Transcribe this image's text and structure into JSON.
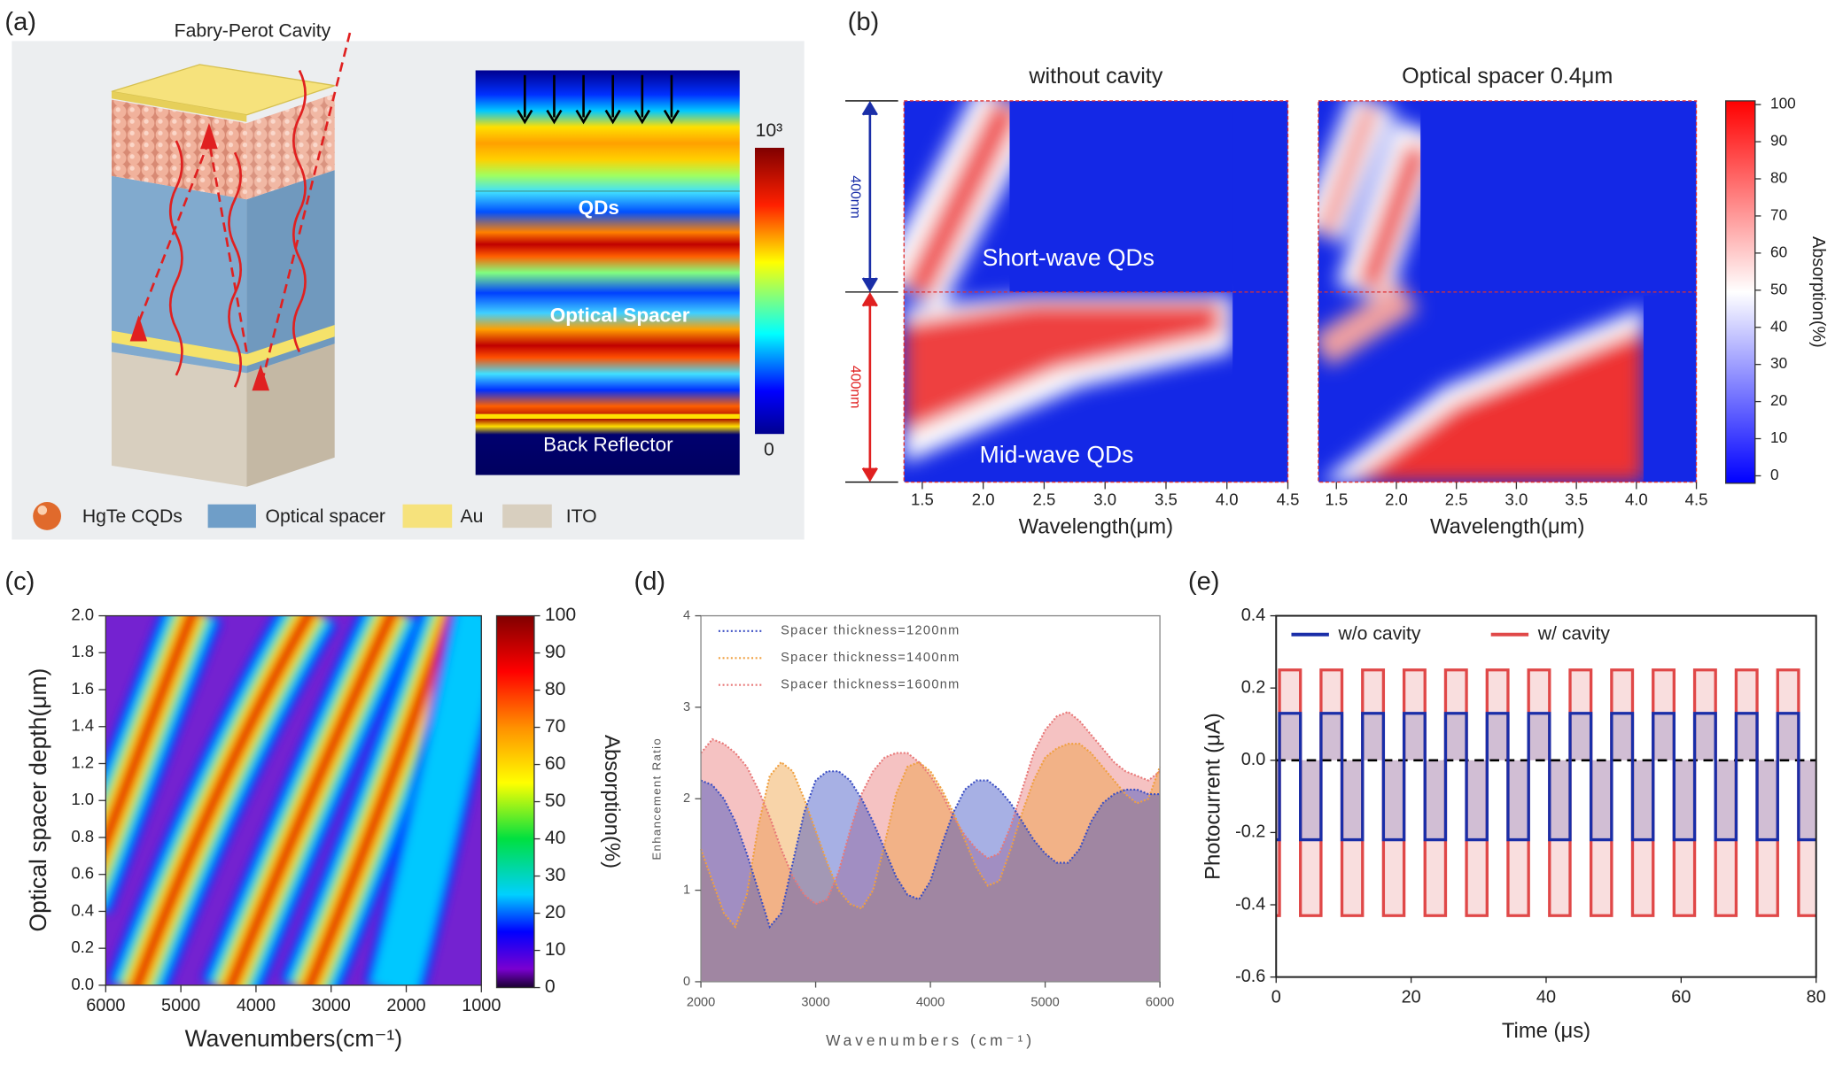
{
  "panel_labels": [
    "(a)",
    "(b)",
    "(c)",
    "(d)",
    "(e)"
  ],
  "diagram": {
    "title": "Fabry-Perot Cavity",
    "field_labels": [
      "QDs",
      "Optical Spacer",
      "Back Reflector"
    ],
    "colorbar_labels": [
      "10³",
      "0"
    ],
    "legend": [
      "HgTe CQDs",
      "Optical spacer",
      "Au",
      "ITO"
    ]
  },
  "chart_data": [
    {
      "type": "heatmap",
      "panels": [
        {
          "title": "without cavity"
        },
        {
          "title": "Optical spacer 0.4μm"
        }
      ],
      "region_labels": [
        "Short-wave QDs",
        "Mid-wave QDs"
      ],
      "thickness_labels": [
        "400nm",
        "400nm"
      ],
      "xlabel": "Wavelength(μm)",
      "xlim": [
        1.35,
        4.5
      ],
      "xticks": [
        1.5,
        {
          "value": 2,
          "label": "2.0"
        },
        2.5,
        {
          "value": 3,
          "label": "3.0"
        },
        3.5,
        {
          "value": 4,
          "label": "4.0"
        },
        4.5
      ],
      "colorbar": {
        "label": "Absorption(%)",
        "lim": [
          -2,
          101
        ],
        "ticks": [
          0,
          10,
          20,
          30,
          40,
          50,
          60,
          70,
          80,
          90,
          100
        ]
      }
    },
    {
      "type": "heatmap",
      "xlabel": "Wavenumbers(cm⁻¹)",
      "ylabel": "Optical spacer depth(μm)",
      "xlim": [
        6000,
        1000
      ],
      "xticks": [
        6000,
        5000,
        4000,
        3000,
        2000,
        1000
      ],
      "ylim": [
        0,
        2
      ],
      "yticks": [
        {
          "value": 0,
          "label": "0.0"
        },
        0.2,
        0.4,
        0.6,
        0.8,
        {
          "value": 1,
          "label": "1.0"
        },
        1.2,
        1.4,
        1.6,
        1.8,
        {
          "value": 2,
          "label": "2.0"
        }
      ],
      "colorbar": {
        "label": "Absorption(%)",
        "lim": [
          0,
          100
        ],
        "ticks": [
          0,
          10,
          20,
          30,
          40,
          50,
          60,
          70,
          80,
          90,
          100
        ]
      }
    },
    {
      "type": "line",
      "xlabel": "Wavenumbers (cm⁻¹)",
      "ylabel": "Enhancement Ratio",
      "xlim": [
        2000,
        6000
      ],
      "xticks": [
        2000,
        3000,
        4000,
        5000,
        6000
      ],
      "ylim": [
        0,
        4
      ],
      "yticks": [
        0,
        1,
        2,
        3,
        4
      ],
      "x": [
        2000,
        2100,
        2200,
        2300,
        2400,
        2500,
        2600,
        2700,
        2800,
        2900,
        3000,
        3100,
        3200,
        3300,
        3400,
        3500,
        3600,
        3700,
        3800,
        3900,
        4000,
        4100,
        4200,
        4300,
        4400,
        4500,
        4600,
        4700,
        4800,
        4900,
        5000,
        5100,
        5200,
        5300,
        5400,
        5500,
        5600,
        5700,
        5800,
        5900,
        6000
      ],
      "series": [
        {
          "name": "Spacer thickness=1200nm",
          "color": "#3b4fc4",
          "values": [
            2.2,
            2.15,
            2.0,
            1.75,
            1.4,
            1.0,
            0.6,
            0.75,
            1.3,
            1.85,
            2.2,
            2.3,
            2.3,
            2.2,
            2.0,
            1.75,
            1.45,
            1.15,
            0.95,
            0.9,
            1.1,
            1.5,
            1.85,
            2.1,
            2.2,
            2.2,
            2.1,
            1.95,
            1.75,
            1.55,
            1.4,
            1.3,
            1.3,
            1.45,
            1.75,
            1.95,
            2.05,
            2.1,
            2.1,
            2.05,
            2.05
          ]
        },
        {
          "name": "Spacer thickness=1400nm",
          "color": "#f0a040",
          "values": [
            1.45,
            1.1,
            0.75,
            0.6,
            0.95,
            1.7,
            2.25,
            2.4,
            2.3,
            2.0,
            1.65,
            1.3,
            1.0,
            0.85,
            0.8,
            1.0,
            1.5,
            2.05,
            2.35,
            2.4,
            2.3,
            2.1,
            1.85,
            1.55,
            1.25,
            1.05,
            1.1,
            1.45,
            1.85,
            2.2,
            2.45,
            2.55,
            2.6,
            2.6,
            2.5,
            2.35,
            2.2,
            2.05,
            1.95,
            2.0,
            2.35
          ]
        },
        {
          "name": "Spacer thickness=1600nm",
          "color": "#e87878",
          "values": [
            2.5,
            2.65,
            2.6,
            2.5,
            2.35,
            2.1,
            1.8,
            1.45,
            1.15,
            0.95,
            0.85,
            0.9,
            1.2,
            1.65,
            2.05,
            2.3,
            2.45,
            2.5,
            2.5,
            2.4,
            2.25,
            2.05,
            1.8,
            1.6,
            1.45,
            1.35,
            1.4,
            1.7,
            2.1,
            2.5,
            2.75,
            2.9,
            2.95,
            2.85,
            2.7,
            2.55,
            2.4,
            2.3,
            2.25,
            2.2,
            2.3
          ]
        }
      ]
    },
    {
      "type": "line",
      "xlabel": "Time (μs)",
      "ylabel": "Photocurrent (μA)",
      "xlim": [
        0,
        80
      ],
      "xticks": [
        0,
        20,
        40,
        60,
        80
      ],
      "ylim": [
        -0.6,
        0.4
      ],
      "yticks": [
        -0.6,
        -0.4,
        -0.2,
        {
          "value": 0,
          "label": "0.0"
        },
        0.2,
        0.4
      ],
      "x": [
        0,
        0.5,
        0.5,
        3.6,
        3.6,
        6.65,
        6.65,
        9.75,
        9.75,
        12.8,
        12.8,
        15.9,
        15.9,
        18.95,
        18.95,
        22.05,
        22.05,
        25.1,
        25.1,
        28.2,
        28.2,
        31.25,
        31.25,
        34.35,
        34.35,
        37.4,
        37.4,
        40.5,
        40.5,
        43.55,
        43.55,
        46.65,
        46.65,
        49.7,
        49.7,
        52.8,
        52.8,
        55.85,
        55.85,
        58.95,
        58.95,
        62,
        62,
        65.1,
        65.1,
        68.15,
        68.15,
        71.25,
        71.25,
        74.3,
        74.3,
        77.4,
        77.4,
        80
      ],
      "series": [
        {
          "name": "w/ cavity",
          "color": "#e04848",
          "values": [
            -0.43,
            -0.43,
            0.25,
            0.25,
            -0.43,
            -0.43,
            0.25,
            0.25,
            -0.43,
            -0.43,
            0.25,
            0.25,
            -0.43,
            -0.43,
            0.25,
            0.25,
            -0.43,
            -0.43,
            0.25,
            0.25,
            -0.43,
            -0.43,
            0.25,
            0.25,
            -0.43,
            -0.43,
            0.25,
            0.25,
            -0.43,
            -0.43,
            0.25,
            0.25,
            -0.43,
            -0.43,
            0.25,
            0.25,
            -0.43,
            -0.43,
            0.25,
            0.25,
            -0.43,
            -0.43,
            0.25,
            0.25,
            -0.43,
            -0.43,
            0.25,
            0.25,
            -0.43,
            -0.43,
            0.25,
            0.25,
            -0.43,
            -0.43
          ]
        },
        {
          "name": "w/o cavity",
          "color": "#1a2ea8",
          "values": [
            -0.22,
            -0.22,
            0.13,
            0.13,
            -0.22,
            -0.22,
            0.13,
            0.13,
            -0.22,
            -0.22,
            0.13,
            0.13,
            -0.22,
            -0.22,
            0.13,
            0.13,
            -0.22,
            -0.22,
            0.13,
            0.13,
            -0.22,
            -0.22,
            0.13,
            0.13,
            -0.22,
            -0.22,
            0.13,
            0.13,
            -0.22,
            -0.22,
            0.13,
            0.13,
            -0.22,
            -0.22,
            0.13,
            0.13,
            -0.22,
            -0.22,
            0.13,
            0.13,
            -0.22,
            -0.22,
            0.13,
            0.13,
            -0.22,
            -0.22,
            0.13,
            0.13,
            -0.22,
            -0.22,
            0.13,
            0.13,
            -0.22,
            -0.22
          ]
        }
      ]
    }
  ]
}
